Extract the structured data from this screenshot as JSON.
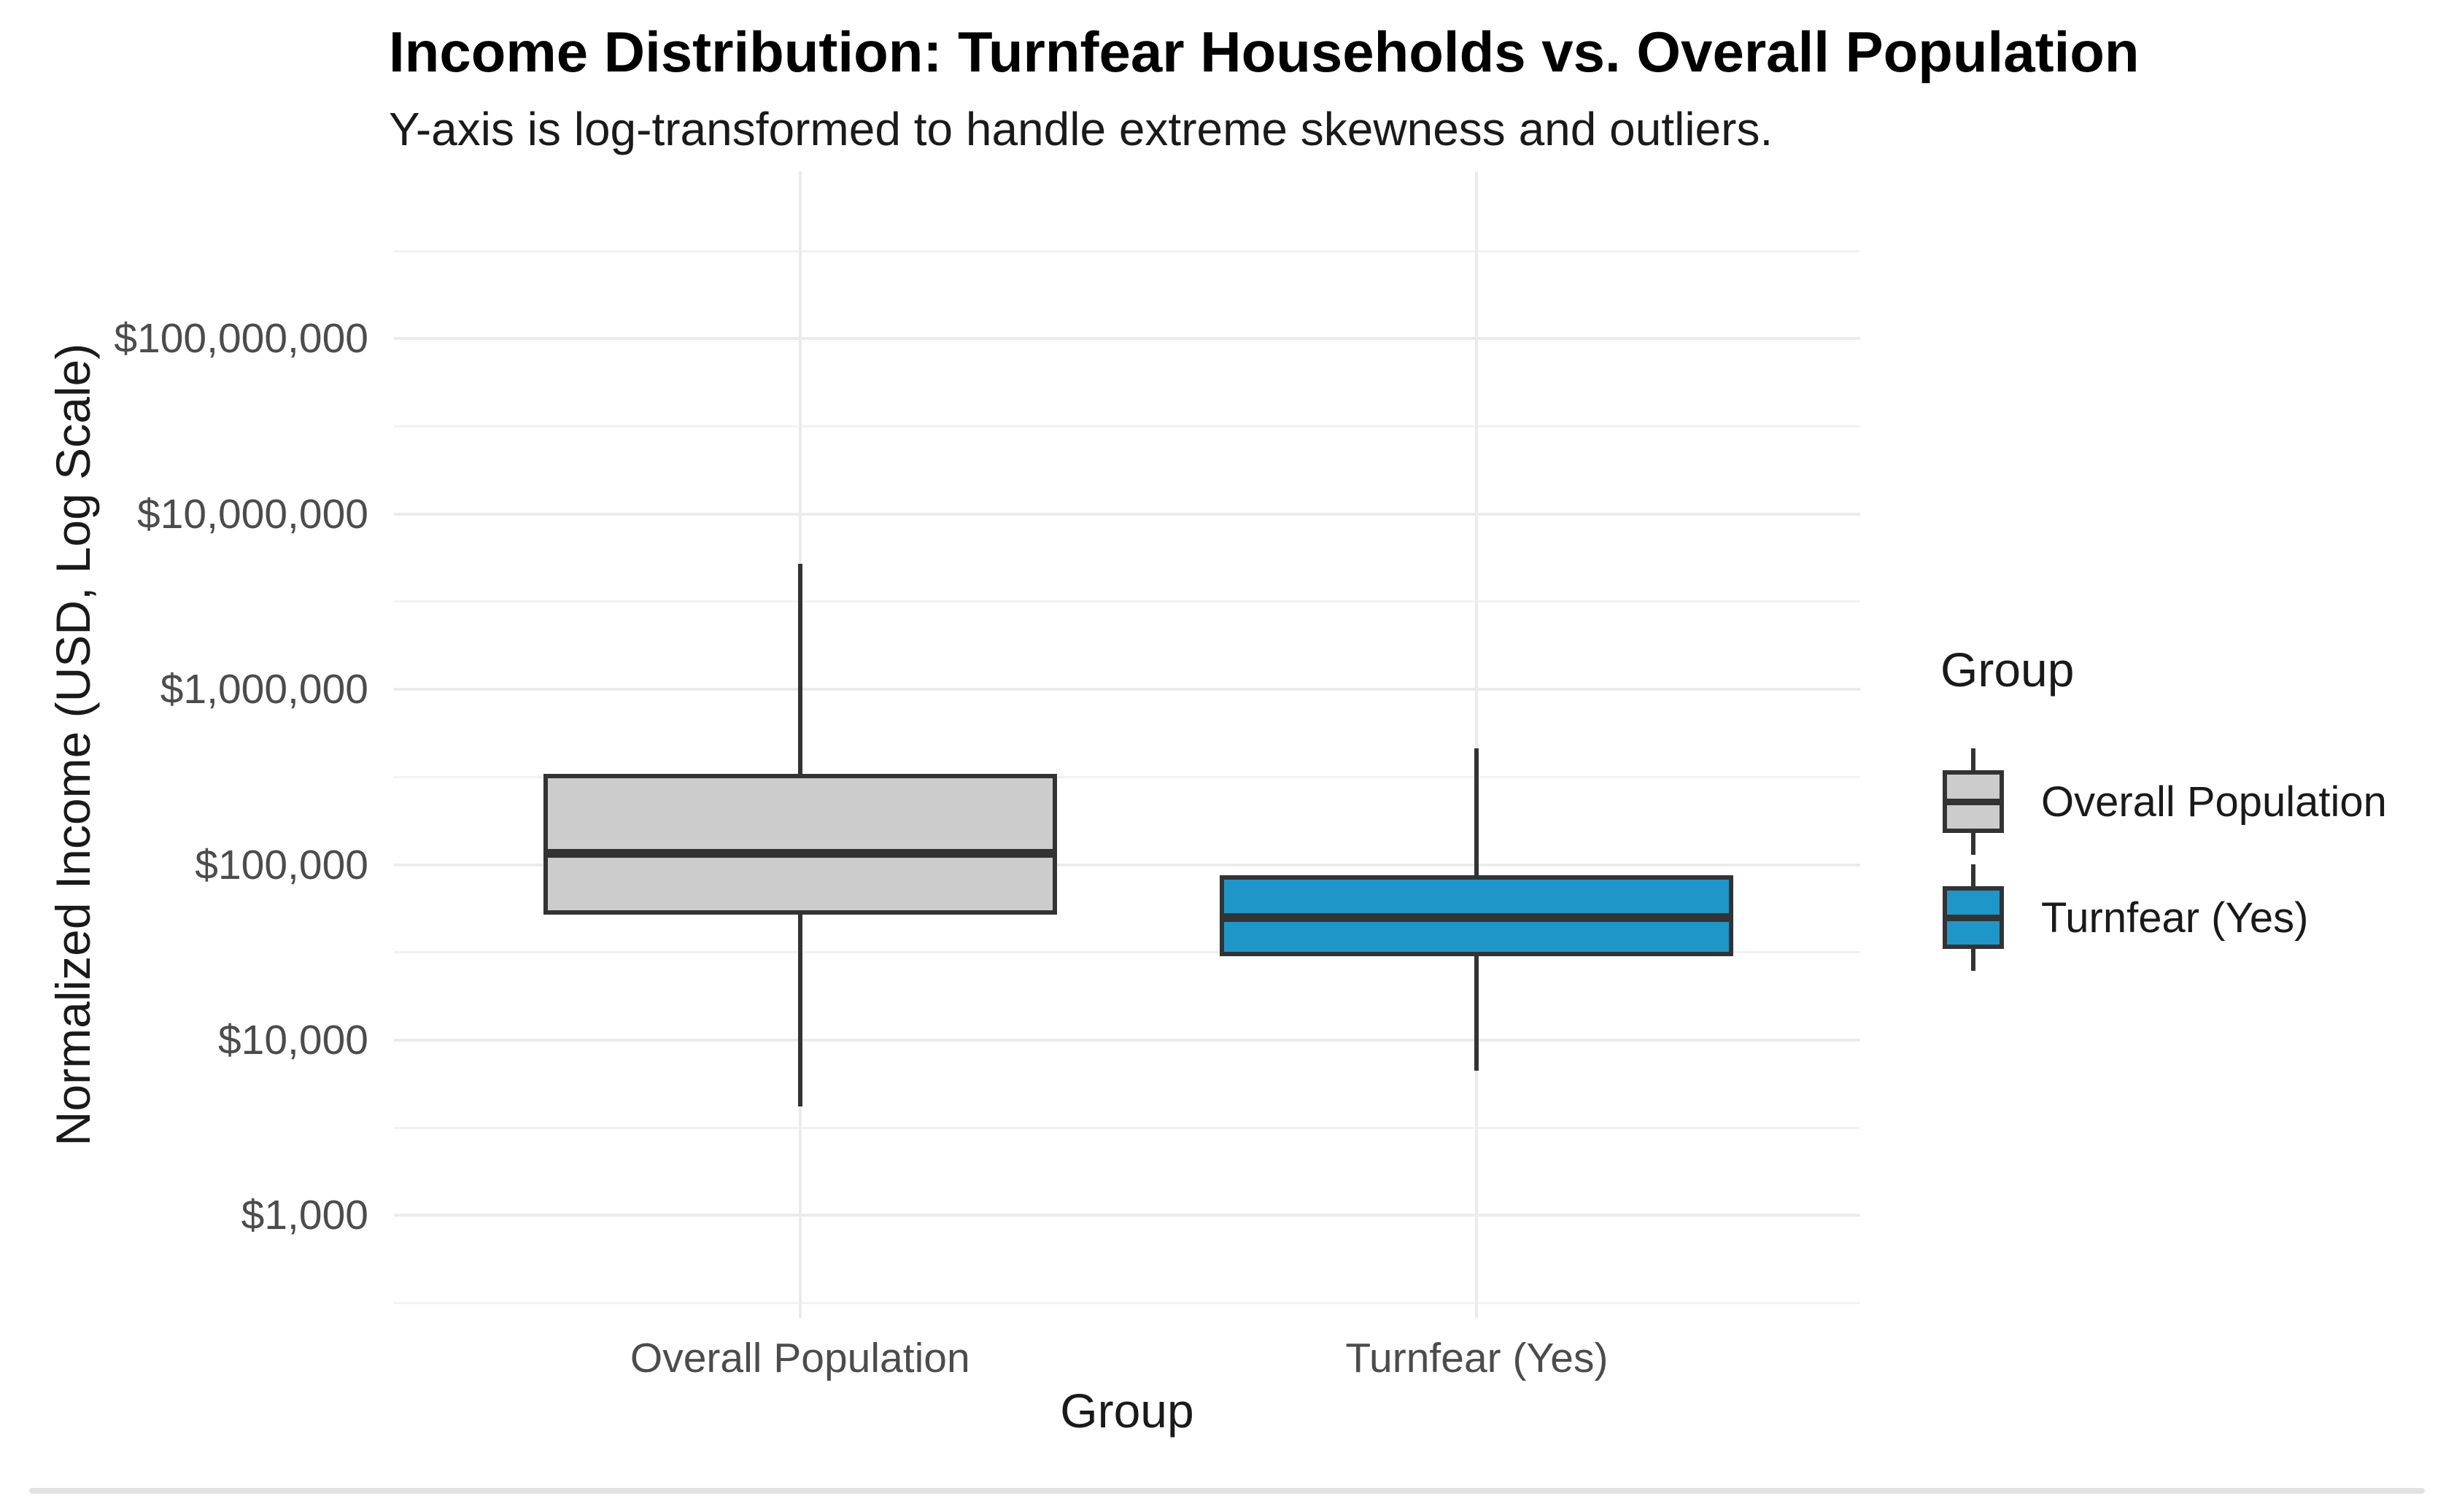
{
  "chart_data": {
    "type": "box",
    "title": "Income Distribution: Turnfear Households vs. Overall Population",
    "subtitle": "Y-axis is log-transformed to handle extreme skewness and outliers.",
    "xlabel": "Group",
    "ylabel": "Normalized Income (USD, Log Scale)",
    "y_scale": "log10",
    "ylim": [
      260,
      900000000
    ],
    "grid": {
      "major": true,
      "minor": true
    },
    "ytick_values": [
      100000000,
      10000000,
      1000000,
      100000,
      10000,
      1000
    ],
    "ytick_labels": [
      "$100,000,000",
      "$10,000,000",
      "$1,000,000",
      "$100,000",
      "$10,000",
      "$1,000"
    ],
    "categories": [
      "Overall Population",
      "Turnfear (Yes)"
    ],
    "series": [
      {
        "name": "Overall Population",
        "fill": "#cccccc",
        "whisker_low": 4200,
        "q1": 52000,
        "median": 116000,
        "q3": 330000,
        "whisker_high": 5200000
      },
      {
        "name": "Turnfear (Yes)",
        "fill": "#1e96c8",
        "whisker_low": 6700,
        "q1": 30000,
        "median": 50000,
        "q3": 87000,
        "whisker_high": 460000
      }
    ],
    "legend": {
      "title": "Group",
      "position": "right"
    },
    "stroke_color": "#333333"
  }
}
